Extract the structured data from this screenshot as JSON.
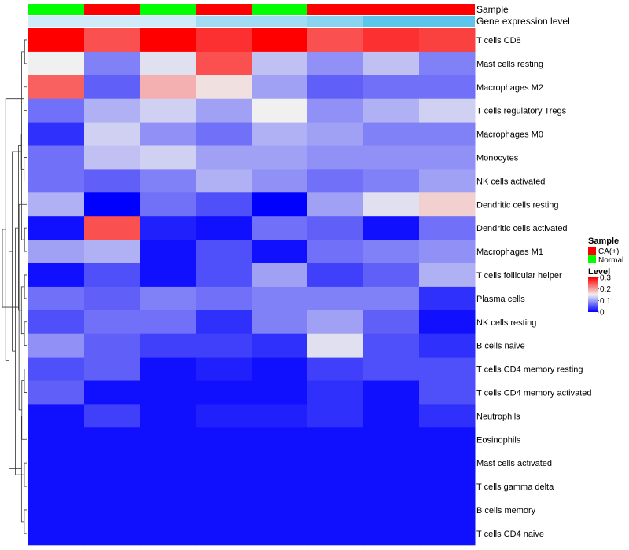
{
  "chart_data": {
    "type": "heatmap",
    "annotation_labels": {
      "sample": "Sample",
      "gene": "Gene expression level"
    },
    "columns": [
      "Normal",
      "CA(+)",
      "Normal",
      "CA(+)",
      "Normal",
      "CA(+)",
      "CA(+)",
      "CA(+)"
    ],
    "gene_expression_level": [
      0.05,
      0.05,
      0.05,
      0.15,
      0.15,
      0.2,
      0.3,
      0.3
    ],
    "rows": [
      "T cells CD8",
      "Mast cells resting",
      "Macrophages M2",
      "T cells regulatory  Tregs",
      "Macrophages M0",
      "Monocytes",
      "NK cells activated",
      "Dendritic cells resting",
      "Dendritic cells activated",
      "Macrophages M1",
      "T cells follicular helper",
      "Plasma cells",
      "NK cells resting",
      "B cells naive",
      "T cells CD4 memory resting",
      "T cells CD4 memory activated",
      "Neutrophils",
      "Eosinophils",
      "Mast cells activated",
      "T cells gamma delta",
      "B cells memory",
      "T cells CD4 naive"
    ],
    "values": [
      [
        0.3,
        0.25,
        0.3,
        0.27,
        0.3,
        0.25,
        0.27,
        0.26
      ],
      [
        0.15,
        0.08,
        0.14,
        0.25,
        0.12,
        0.09,
        0.12,
        0.08
      ],
      [
        0.24,
        0.06,
        0.19,
        0.16,
        0.1,
        0.06,
        0.07,
        0.07
      ],
      [
        0.07,
        0.11,
        0.13,
        0.1,
        0.15,
        0.09,
        0.11,
        0.13
      ],
      [
        0.03,
        0.13,
        0.09,
        0.07,
        0.11,
        0.1,
        0.08,
        0.08
      ],
      [
        0.07,
        0.12,
        0.13,
        0.1,
        0.1,
        0.09,
        0.09,
        0.09
      ],
      [
        0.07,
        0.06,
        0.08,
        0.11,
        0.09,
        0.07,
        0.08,
        0.1
      ],
      [
        0.11,
        0.0,
        0.07,
        0.05,
        0.0,
        0.1,
        0.14,
        0.17
      ],
      [
        0.01,
        0.25,
        0.02,
        0.01,
        0.07,
        0.06,
        0.01,
        0.07
      ],
      [
        0.1,
        0.11,
        0.01,
        0.05,
        0.01,
        0.07,
        0.08,
        0.09
      ],
      [
        0.01,
        0.05,
        0.01,
        0.05,
        0.1,
        0.04,
        0.06,
        0.11
      ],
      [
        0.07,
        0.06,
        0.08,
        0.07,
        0.08,
        0.08,
        0.08,
        0.03
      ],
      [
        0.05,
        0.07,
        0.07,
        0.03,
        0.08,
        0.1,
        0.06,
        0.01
      ],
      [
        0.09,
        0.06,
        0.04,
        0.04,
        0.03,
        0.14,
        0.05,
        0.03
      ],
      [
        0.05,
        0.06,
        0.01,
        0.02,
        0.01,
        0.04,
        0.05,
        0.05
      ],
      [
        0.06,
        0.01,
        0.01,
        0.01,
        0.01,
        0.03,
        0.01,
        0.05
      ],
      [
        0.01,
        0.04,
        0.01,
        0.02,
        0.02,
        0.03,
        0.01,
        0.03
      ],
      [
        0.01,
        0.01,
        0.01,
        0.01,
        0.01,
        0.01,
        0.01,
        0.01
      ],
      [
        0.01,
        0.01,
        0.01,
        0.01,
        0.01,
        0.01,
        0.01,
        0.01
      ],
      [
        0.01,
        0.01,
        0.01,
        0.01,
        0.01,
        0.01,
        0.01,
        0.01
      ],
      [
        0.01,
        0.01,
        0.01,
        0.01,
        0.01,
        0.01,
        0.01,
        0.01
      ],
      [
        0.01,
        0.01,
        0.01,
        0.01,
        0.01,
        0.01,
        0.01,
        0.01
      ]
    ],
    "color_scale": {
      "min": 0,
      "mid": 0.15,
      "max": 0.3,
      "low_color": "#0000ff",
      "mid_color": "#f0f0f0",
      "high_color": "#ff0000"
    },
    "gene_level_scale": {
      "min": 0,
      "max": 0.3,
      "low_color": "#e6f2fb",
      "high_color": "#5bc5ec"
    },
    "sample_colors": {
      "CA(+)": "#ff0000",
      "Normal": "#00ff00"
    },
    "legend": {
      "sample_title": "Sample",
      "sample_items": [
        "CA(+)",
        "Normal"
      ],
      "level_title": "Level",
      "level_ticks": [
        "0.3",
        "0.2",
        "0.1",
        "0"
      ],
      "level_tick_values": [
        0.3,
        0.2,
        0.1,
        0
      ]
    },
    "row_dendrogram": [
      [
        0,
        1
      ],
      [
        8,
        9
      ],
      [
        10,
        11
      ],
      [
        12,
        13
      ],
      [
        14,
        15
      ],
      [
        18,
        19
      ],
      [
        20,
        21
      ],
      [
        17,
        26
      ],
      [
        5,
        6
      ],
      [
        2,
        3
      ],
      [
        16,
        28
      ],
      [
        4,
        30
      ],
      [
        7,
        29
      ],
      [
        22,
        23
      ],
      [
        24,
        25
      ],
      [
        35,
        36
      ],
      [
        27,
        37
      ],
      [
        33,
        38
      ],
      [
        32,
        39
      ],
      [
        31,
        40
      ],
      [
        34,
        41
      ]
    ]
  }
}
